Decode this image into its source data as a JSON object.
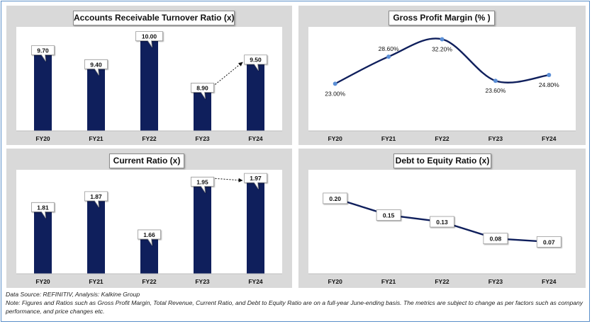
{
  "chart_data": [
    {
      "type": "bar",
      "title": "Accounts Receivable Turnover Ratio (x)",
      "categories": [
        "FY20",
        "FY21",
        "FY22",
        "FY23",
        "FY24"
      ],
      "values": [
        9.7,
        9.4,
        10.0,
        8.9,
        9.5
      ],
      "labels": [
        "9.70",
        "9.40",
        "10.00",
        "8.90",
        "9.50"
      ],
      "ylim": [
        8.0,
        10.1
      ],
      "grid": false,
      "bar_color": "#0f1f5c",
      "trend_arrow": {
        "from": "FY23",
        "to": "FY24"
      }
    },
    {
      "type": "line",
      "title": "Gross Profit Margin (% )",
      "categories": [
        "FY20",
        "FY21",
        "FY22",
        "FY23",
        "FY24"
      ],
      "values": [
        23.0,
        28.6,
        32.2,
        23.6,
        24.8
      ],
      "labels": [
        "23.00%",
        "28.60%",
        "32.20%",
        "23.60%",
        "24.80%"
      ],
      "label_positions": [
        "below",
        "above",
        "below",
        "below",
        "below"
      ],
      "ylim": [
        15,
        33
      ],
      "grid": false,
      "line_color": "#0f1f5c",
      "marker_color": "#5b8fd6",
      "smooth": true
    },
    {
      "type": "bar",
      "title": "Current Ratio (x)",
      "categories": [
        "FY20",
        "FY21",
        "FY22",
        "FY23",
        "FY24"
      ],
      "values": [
        1.81,
        1.87,
        1.66,
        1.95,
        1.97
      ],
      "labels": [
        "1.81",
        "1.87",
        "1.66",
        "1.95",
        "1.97"
      ],
      "ylim": [
        1.45,
        1.99
      ],
      "grid": false,
      "bar_color": "#0f1f5c",
      "trend_arrow": {
        "from": "FY23",
        "to": "FY24"
      }
    },
    {
      "type": "line",
      "title": "Debt to Equity Ratio (x)",
      "categories": [
        "FY20",
        "FY21",
        "FY22",
        "FY23",
        "FY24"
      ],
      "values": [
        0.2,
        0.15,
        0.13,
        0.08,
        0.07
      ],
      "labels": [
        "0.20",
        "0.15",
        "0.13",
        "0.08",
        "0.07"
      ],
      "ylim": [
        0.0,
        0.26
      ],
      "grid": false,
      "line_color": "#0f1f5c",
      "smooth": false
    }
  ],
  "footer": {
    "source": "Data Source: REFINITIV, Analysis: Kalkine Group",
    "note": "Note: Figures and Ratios such as Gross Profit Margin, Total Revenue, Current Ratio, and Debt to Equity Ratio are on a full-year June-ending basis. The metrics are subject to change as per factors such as company performance, and price changes etc."
  }
}
